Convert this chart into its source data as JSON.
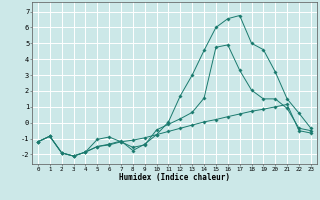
{
  "xlabel": "Humidex (Indice chaleur)",
  "xlim": [
    -0.5,
    23.5
  ],
  "ylim": [
    -2.6,
    7.6
  ],
  "xticks": [
    0,
    1,
    2,
    3,
    4,
    5,
    6,
    7,
    8,
    9,
    10,
    11,
    12,
    13,
    14,
    15,
    16,
    17,
    18,
    19,
    20,
    21,
    22,
    23
  ],
  "yticks": [
    -2,
    -1,
    0,
    1,
    2,
    3,
    4,
    5,
    6,
    7
  ],
  "background_color": "#cce8e8",
  "grid_color": "#ffffff",
  "line_color": "#1a7a6e",
  "line1_x": [
    0,
    1,
    2,
    3,
    4,
    5,
    6,
    7,
    8,
    9,
    10,
    11,
    12,
    13,
    14,
    15,
    16,
    17,
    18,
    19,
    20,
    21,
    22,
    23
  ],
  "line1_y": [
    -1.2,
    -0.85,
    -1.9,
    -2.1,
    -1.85,
    -1.05,
    -0.9,
    -1.2,
    -1.55,
    -1.4,
    -0.45,
    -0.1,
    0.25,
    0.65,
    1.55,
    4.75,
    4.9,
    3.3,
    2.05,
    1.5,
    1.5,
    0.9,
    -0.35,
    -0.5
  ],
  "line2_x": [
    0,
    1,
    2,
    3,
    4,
    5,
    6,
    7,
    8,
    9,
    10,
    11,
    12,
    13,
    14,
    15,
    16,
    17,
    18,
    19,
    20,
    21,
    22,
    23
  ],
  "line2_y": [
    -1.2,
    -0.85,
    -1.9,
    -2.1,
    -1.85,
    -1.5,
    -1.35,
    -1.15,
    -1.75,
    -1.35,
    -0.75,
    0.05,
    1.7,
    3.0,
    4.55,
    6.0,
    6.55,
    6.75,
    5.0,
    4.6,
    3.2,
    1.5,
    0.6,
    -0.35
  ],
  "line3_x": [
    0,
    1,
    2,
    3,
    4,
    5,
    6,
    7,
    8,
    9,
    10,
    11,
    12,
    13,
    14,
    15,
    16,
    17,
    18,
    19,
    20,
    21,
    22,
    23
  ],
  "line3_y": [
    -1.2,
    -0.85,
    -1.9,
    -2.1,
    -1.85,
    -1.5,
    -1.4,
    -1.2,
    -1.1,
    -0.95,
    -0.75,
    -0.55,
    -0.35,
    -0.15,
    0.05,
    0.2,
    0.38,
    0.55,
    0.72,
    0.85,
    1.0,
    1.15,
    -0.5,
    -0.65
  ]
}
